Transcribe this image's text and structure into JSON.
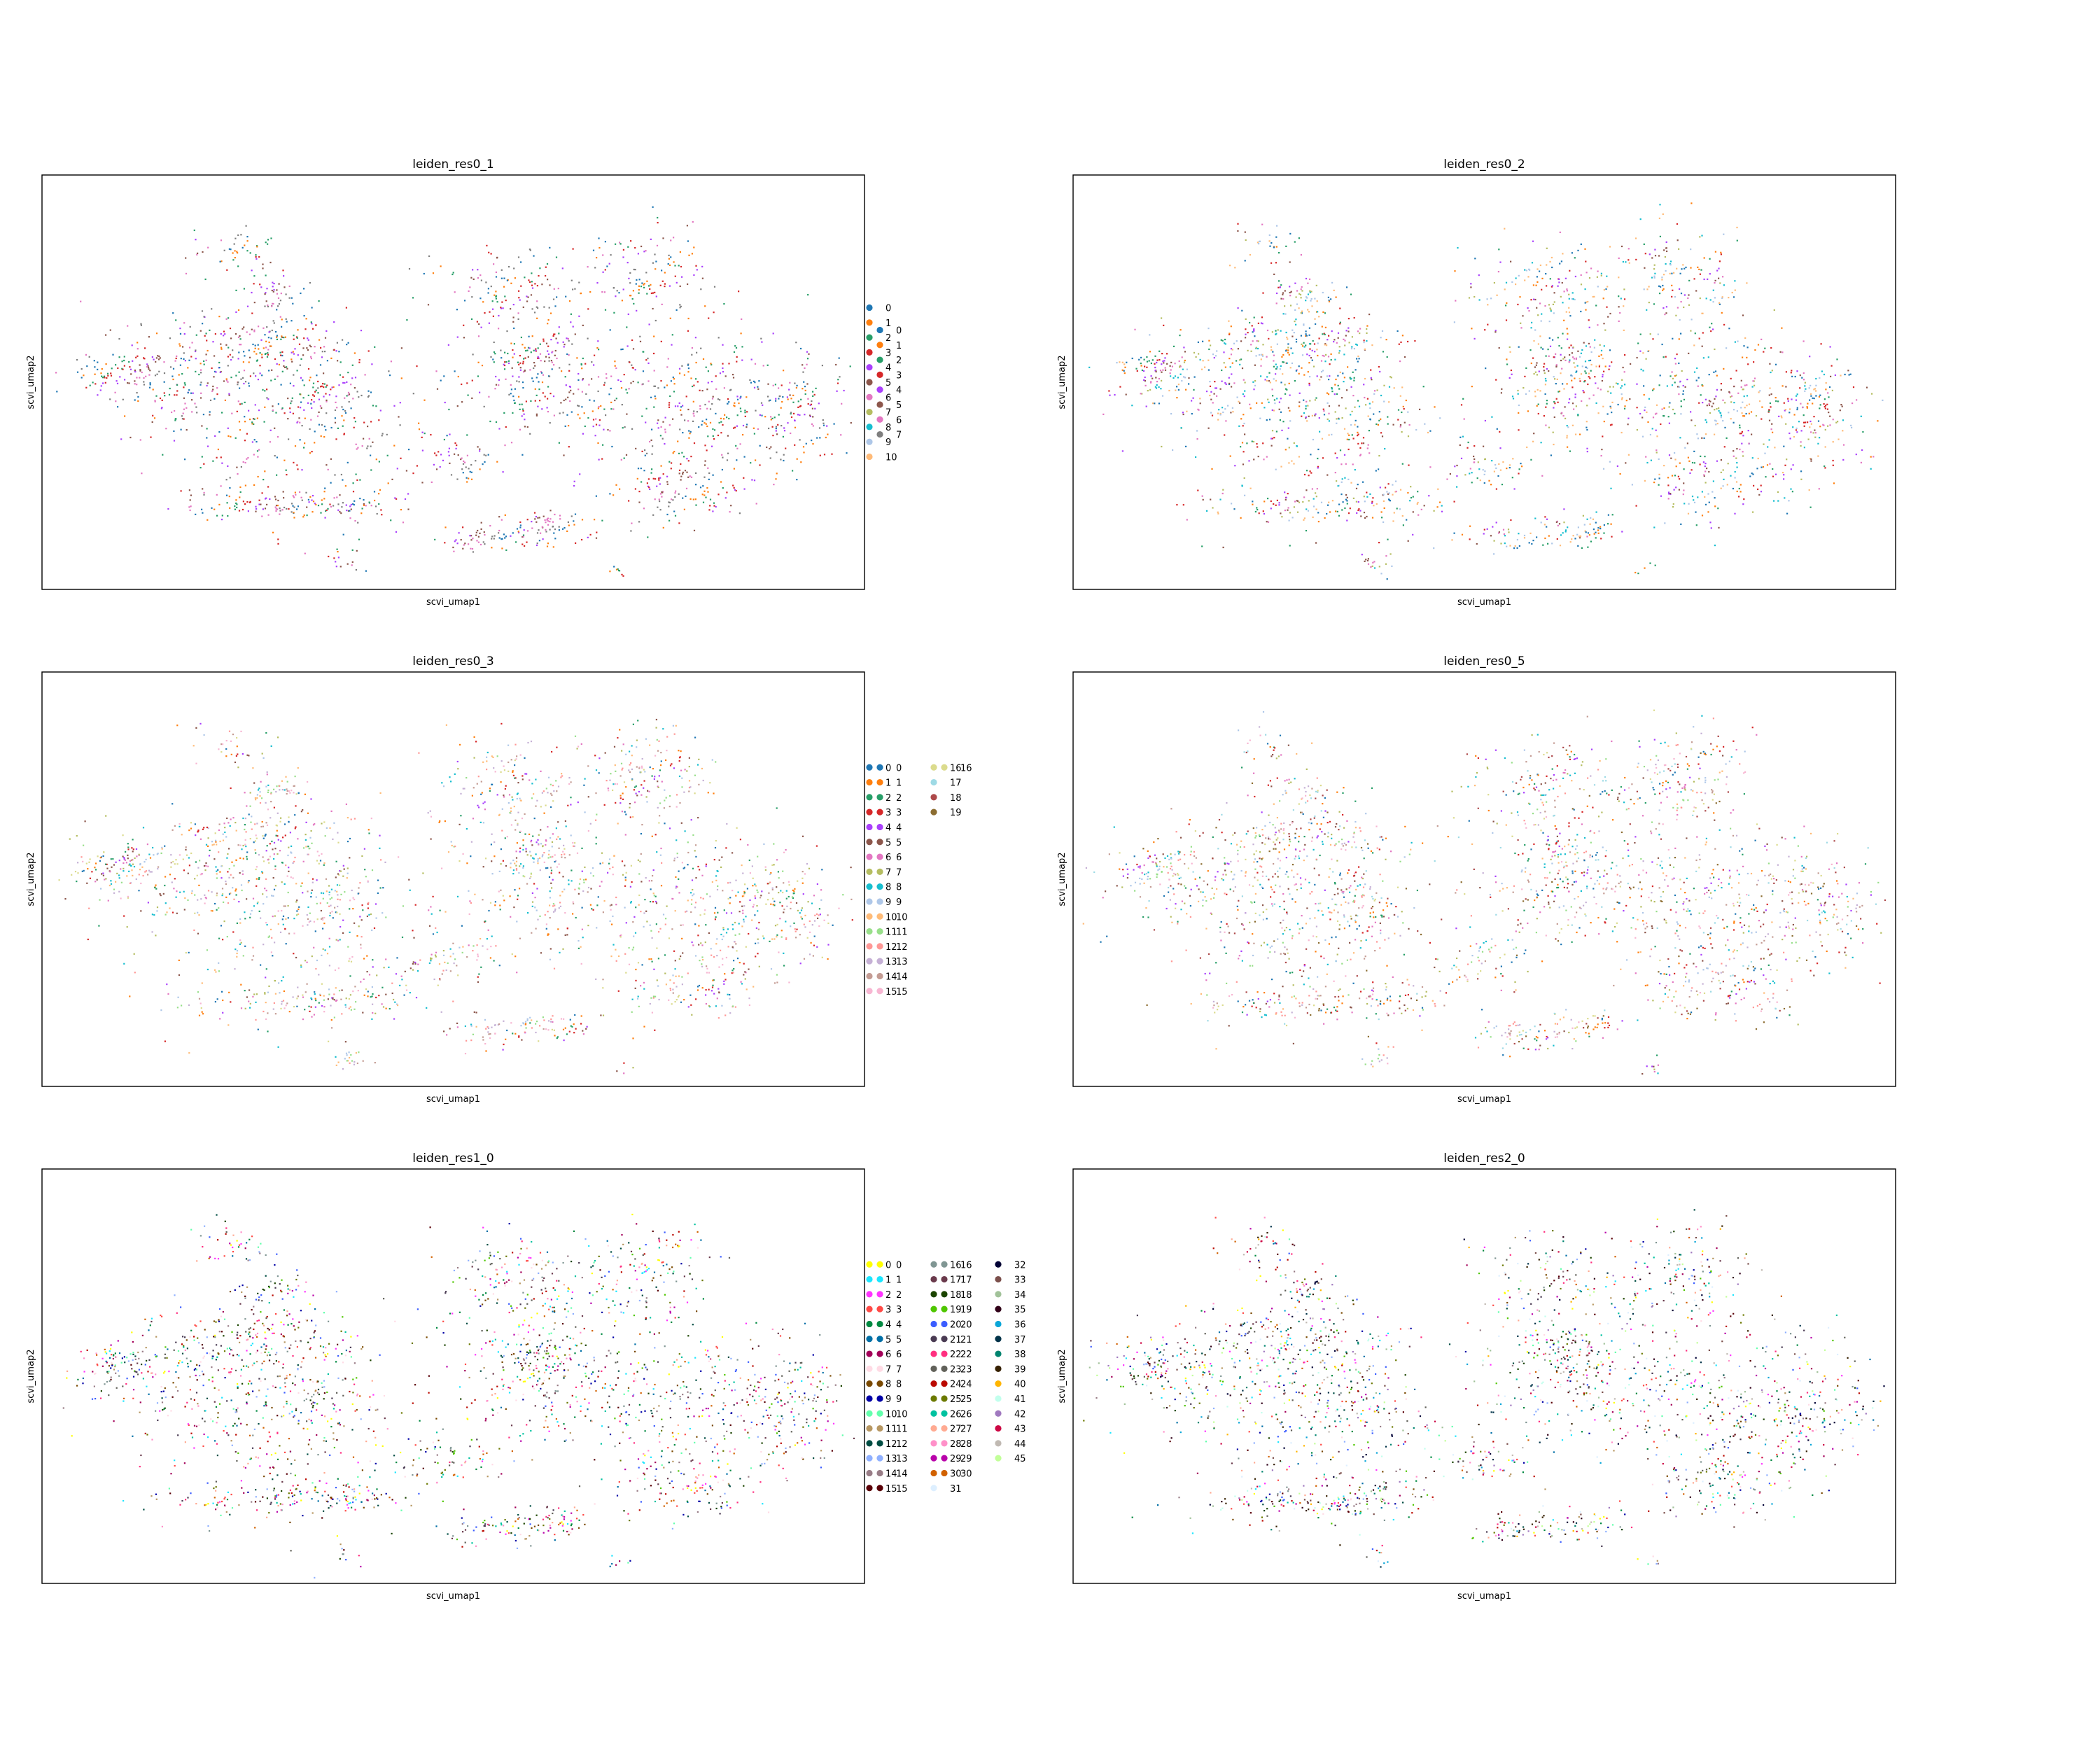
{
  "chart_data": [
    {
      "type": "scatter",
      "title": "leiden_res0_1",
      "xlabel": "scvi_umap1",
      "ylabel": "scvi_umap2",
      "legend": {
        "placement": "right",
        "labels": [
          "0",
          "1",
          "2",
          "3",
          "4",
          "5",
          "6",
          "7"
        ]
      },
      "palette": [
        "#1f77b4",
        "#ff7f0e",
        "#279e68",
        "#d62728",
        "#aa40fc",
        "#8c564b",
        "#e377c2",
        "#7f7f7f"
      ],
      "ticks": "none",
      "grid": false
    },
    {
      "type": "scatter",
      "title": "leiden_res0_2",
      "xlabel": "scvi_umap1",
      "ylabel": "scvi_umap2",
      "legend": {
        "placement": "right",
        "labels": [
          "0",
          "1",
          "2",
          "3",
          "4",
          "5",
          "6",
          "7",
          "8",
          "9",
          "10"
        ]
      },
      "palette": [
        "#1f77b4",
        "#ff7f0e",
        "#279e68",
        "#d62728",
        "#aa40fc",
        "#8c564b",
        "#e377c2",
        "#b5bd61",
        "#17becf",
        "#aec7e8",
        "#ffbb78"
      ],
      "ticks": "none",
      "grid": false
    },
    {
      "type": "scatter",
      "title": "leiden_res0_3",
      "xlabel": "scvi_umap1",
      "ylabel": "scvi_umap2",
      "legend": {
        "placement": "right",
        "labels": [
          "0",
          "1",
          "2",
          "3",
          "4",
          "5",
          "6",
          "7",
          "8",
          "9",
          "10",
          "11",
          "12",
          "13",
          "14",
          "15",
          "16"
        ]
      },
      "palette": [
        "#1f77b4",
        "#ff7f0e",
        "#279e68",
        "#d62728",
        "#aa40fc",
        "#8c564b",
        "#e377c2",
        "#b5bd61",
        "#17becf",
        "#aec7e8",
        "#ffbb78",
        "#98df8a",
        "#ff9896",
        "#c5b0d5",
        "#c49c94",
        "#f7b6d2",
        "#dbdb8d"
      ],
      "ticks": "none",
      "grid": false
    },
    {
      "type": "scatter",
      "title": "leiden_res0_5",
      "xlabel": "scvi_umap1",
      "ylabel": "scvi_umap2",
      "legend": {
        "placement": "right",
        "labels": [
          "0",
          "1",
          "2",
          "3",
          "4",
          "5",
          "6",
          "7",
          "8",
          "9",
          "10",
          "11",
          "12",
          "13",
          "14",
          "15",
          "16",
          "17",
          "18",
          "19"
        ]
      },
      "palette": [
        "#1f77b4",
        "#ff7f0e",
        "#279e68",
        "#d62728",
        "#aa40fc",
        "#8c564b",
        "#e377c2",
        "#b5bd61",
        "#17becf",
        "#aec7e8",
        "#ffbb78",
        "#98df8a",
        "#ff9896",
        "#c5b0d5",
        "#c49c94",
        "#f7b6d2",
        "#dbdb8d",
        "#9edae5",
        "#ad494a",
        "#8c6d31"
      ],
      "ticks": "none",
      "grid": false
    },
    {
      "type": "scatter",
      "title": "leiden_res1_0",
      "xlabel": "scvi_umap1",
      "ylabel": "scvi_umap2",
      "legend": {
        "placement": "right",
        "labels": [
          "0",
          "1",
          "2",
          "3",
          "4",
          "5",
          "6",
          "7",
          "8",
          "9",
          "10",
          "11",
          "12",
          "13",
          "14",
          "15",
          "16",
          "17",
          "18",
          "19",
          "20",
          "21",
          "22",
          "23",
          "24",
          "25",
          "26",
          "27",
          "28",
          "29",
          "30"
        ]
      },
      "palette": [
        "#ffff00",
        "#1ce6ff",
        "#ff34ff",
        "#ff4a46",
        "#008941",
        "#006fa6",
        "#a30059",
        "#ffdbe5",
        "#7a4900",
        "#0000a6",
        "#63ffac",
        "#b79762",
        "#004d43",
        "#8fb0ff",
        "#997d87",
        "#5a0007",
        "#809693",
        "#6a3a4c",
        "#1b4400",
        "#4fc601",
        "#3b5dff",
        "#4a3b53",
        "#ff2f80",
        "#61615a",
        "#ba0900",
        "#6b7900",
        "#00c2a0",
        "#ffaa92",
        "#ff90c9",
        "#b903aa",
        "#d16100"
      ],
      "ticks": "none",
      "grid": false
    },
    {
      "type": "scatter",
      "title": "leiden_res2_0",
      "xlabel": "scvi_umap1",
      "ylabel": "scvi_umap2",
      "legend": {
        "placement": "right",
        "labels": [
          "0",
          "1",
          "2",
          "3",
          "4",
          "5",
          "6",
          "7",
          "8",
          "9",
          "10",
          "11",
          "12",
          "13",
          "14",
          "15",
          "16",
          "17",
          "18",
          "19",
          "20",
          "21",
          "22",
          "23",
          "24",
          "25",
          "26",
          "27",
          "28",
          "29",
          "30",
          "31",
          "32",
          "33",
          "34",
          "35",
          "36",
          "37",
          "38",
          "39",
          "40",
          "41",
          "42",
          "43",
          "44",
          "45"
        ]
      },
      "palette": [
        "#ffff00",
        "#1ce6ff",
        "#ff34ff",
        "#ff4a46",
        "#008941",
        "#006fa6",
        "#a30059",
        "#ffdbe5",
        "#7a4900",
        "#0000a6",
        "#63ffac",
        "#b79762",
        "#004d43",
        "#8fb0ff",
        "#997d87",
        "#5a0007",
        "#809693",
        "#6a3a4c",
        "#1b4400",
        "#4fc601",
        "#3b5dff",
        "#4a3b53",
        "#ff2f80",
        "#61615a",
        "#ba0900",
        "#6b7900",
        "#00c2a0",
        "#ffaa92",
        "#ff90c9",
        "#b903aa",
        "#d16100",
        "#ddefff",
        "#000035",
        "#7b4f4b",
        "#a1c299",
        "#300018",
        "#0aa6d8",
        "#013349",
        "#00846f",
        "#372101",
        "#ffb500",
        "#c2ffed",
        "#a079bf",
        "#cc0744",
        "#c0b9b2",
        "#c2ff99"
      ],
      "ticks": "none",
      "grid": false
    }
  ]
}
